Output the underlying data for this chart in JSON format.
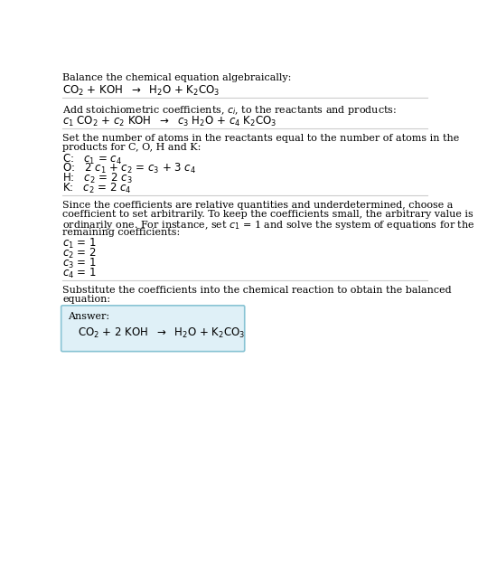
{
  "bg_color": "#ffffff",
  "text_color": "#000000",
  "line_color": "#cccccc",
  "fs_body": 8.0,
  "fs_math": 8.5,
  "section1": {
    "line1": "Balance the chemical equation algebraically:",
    "line2_parts": [
      "CO",
      "2",
      " + KOH  ⟶  H",
      "2",
      "O + K",
      "2",
      "CO",
      "3"
    ]
  },
  "section2": {
    "line1_pre": "Add stoichiometric coefficients, ",
    "line1_ci": "c",
    "line1_ci_sub": "i",
    "line1_post": ", to the reactants and products:"
  },
  "section3": {
    "intro": "Set the number of atoms in the reactants equal to the number of atoms in the\nproducts for C, O, H and K:",
    "equations": [
      "C:   c_1 = c_4",
      "O:   2 c_1 + c_2 = c_3 + 3 c_4",
      "H:   c_2 = 2 c_3",
      "K:   c_2 = 2 c_4"
    ]
  },
  "section4": {
    "intro_lines": [
      "Since the coefficients are relative quantities and underdetermined, choose a",
      "coefficient to set arbitrarily. To keep the coefficients small, the arbitrary value is",
      "ordinarily one. For instance, set c_1 = 1 and solve the system of equations for the",
      "remaining coefficients:"
    ],
    "equations": [
      "c_1 = 1",
      "c_2 = 2",
      "c_3 = 1",
      "c_4 = 1"
    ]
  },
  "section5": {
    "intro_lines": [
      "Substitute the coefficients into the chemical reaction to obtain the balanced",
      "equation:"
    ],
    "answer_label": "Answer:",
    "box_facecolor": "#dff0f7",
    "box_edgecolor": "#89c4d4"
  }
}
